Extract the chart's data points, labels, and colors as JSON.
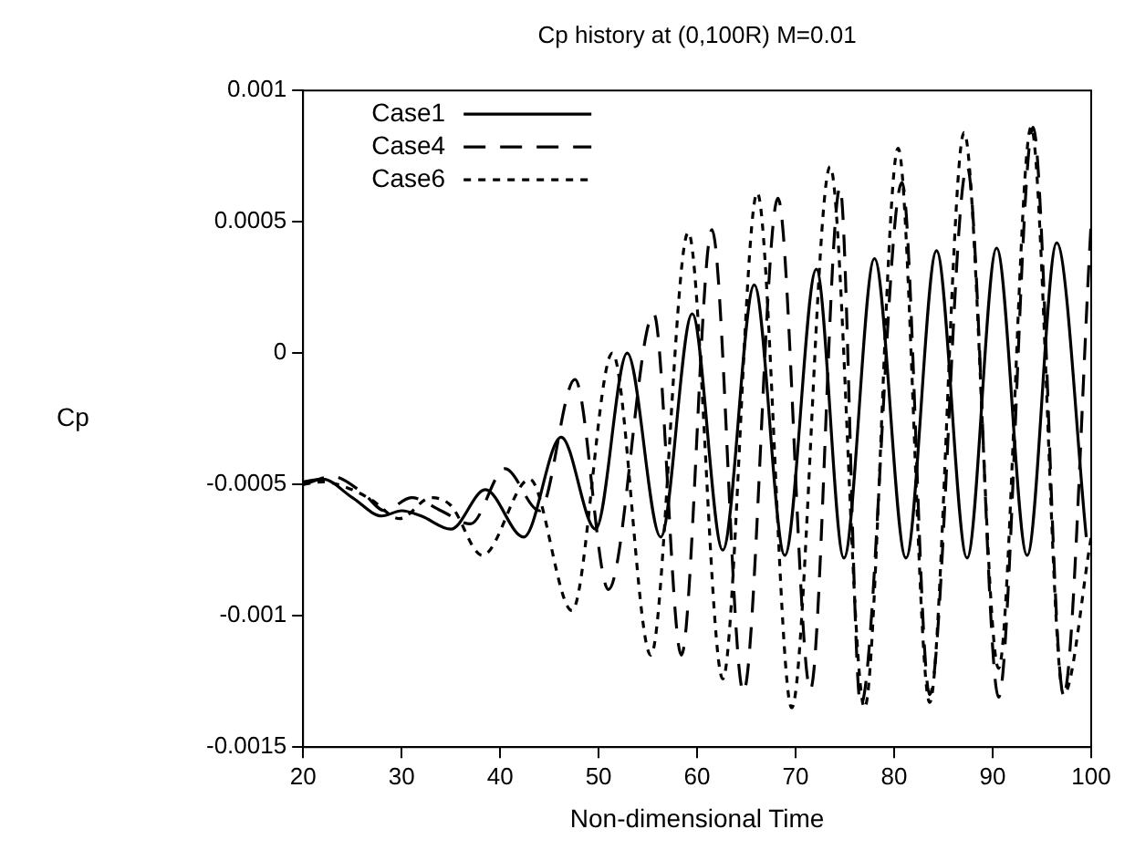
{
  "chart_data": {
    "type": "line",
    "title": "Cp history at (0,100R) M=0.01",
    "xlabel": "Non-dimensional Time",
    "ylabel": "Cp",
    "xlim": [
      20,
      100
    ],
    "xticks": [
      20,
      30,
      40,
      50,
      60,
      70,
      80,
      90,
      100
    ],
    "ylim": [
      -0.0015,
      0.001
    ],
    "yticks": [
      -0.0015,
      -0.001,
      -0.0005,
      0,
      0.0005,
      0.001
    ],
    "grid": false,
    "legend": "top left",
    "marker": "none",
    "series": [
      {
        "name": "Case1",
        "color": "#000000",
        "line_style": "solid",
        "x": [
          20,
          22,
          25,
          28,
          30,
          32,
          35,
          38.5,
          42.4,
          46.2,
          49.7,
          52.9,
          56.3,
          59.5,
          62.6,
          65.8,
          68.9,
          72.1,
          74.9,
          78,
          81.2,
          84.3,
          87.4,
          90.4,
          93.5,
          96.5,
          99.5
        ],
        "values": [
          -0.00049,
          -0.00048,
          -0.00055,
          -0.00062,
          -0.0006,
          -0.00062,
          -0.00067,
          -0.00052,
          -0.0007,
          -0.00032,
          -0.00067,
          0,
          -0.0007,
          0.00015,
          -0.00075,
          0.00026,
          -0.00077,
          0.00032,
          -0.00078,
          0.00036,
          -0.00078,
          0.00039,
          -0.00078,
          0.0004,
          -0.00077,
          0.00042,
          -0.0007
        ]
      },
      {
        "name": "Case4",
        "color": "#000000",
        "line_style": "dashed",
        "x": [
          20,
          23,
          26,
          28.3,
          31,
          34,
          37,
          40.5,
          44,
          47.6,
          51,
          55.6,
          58.4,
          61.5,
          64.7,
          68.2,
          71.5,
          74.5,
          76.6,
          80.8,
          83.6,
          87.4,
          90.6,
          94.1,
          97.2,
          100
        ],
        "values": [
          -0.0005,
          -0.00047,
          -0.00053,
          -0.0006,
          -0.00055,
          -0.0006,
          -0.00065,
          -0.00044,
          -0.0006,
          -0.0001,
          -0.0009,
          0.00015,
          -0.00115,
          0.00047,
          -0.00129,
          0.00059,
          -0.00128,
          0.00063,
          -0.00134,
          0.00065,
          -0.0013,
          0.00071,
          -0.00131,
          0.00086,
          -0.0013,
          0.0005
        ]
      },
      {
        "name": "Case6",
        "color": "#000000",
        "line_style": "dotted",
        "x": [
          20,
          22,
          25,
          27,
          29.8,
          33,
          35,
          38.2,
          43,
          47.3,
          51.4,
          55.3,
          59.1,
          62.6,
          66.1,
          69.6,
          73.5,
          77,
          80.4,
          83.6,
          87.1,
          90.6,
          93.9,
          97.2,
          100
        ],
        "values": [
          -0.0005,
          -0.00049,
          -0.00052,
          -0.00056,
          -0.00063,
          -0.00055,
          -0.00058,
          -0.00077,
          -0.00048,
          -0.00098,
          0,
          -0.00115,
          0.00046,
          -0.00124,
          0.00061,
          -0.00135,
          0.00071,
          -0.00135,
          0.00078,
          -0.00133,
          0.00084,
          -0.0012,
          0.00086,
          -0.0013,
          -0.0007
        ]
      }
    ]
  }
}
